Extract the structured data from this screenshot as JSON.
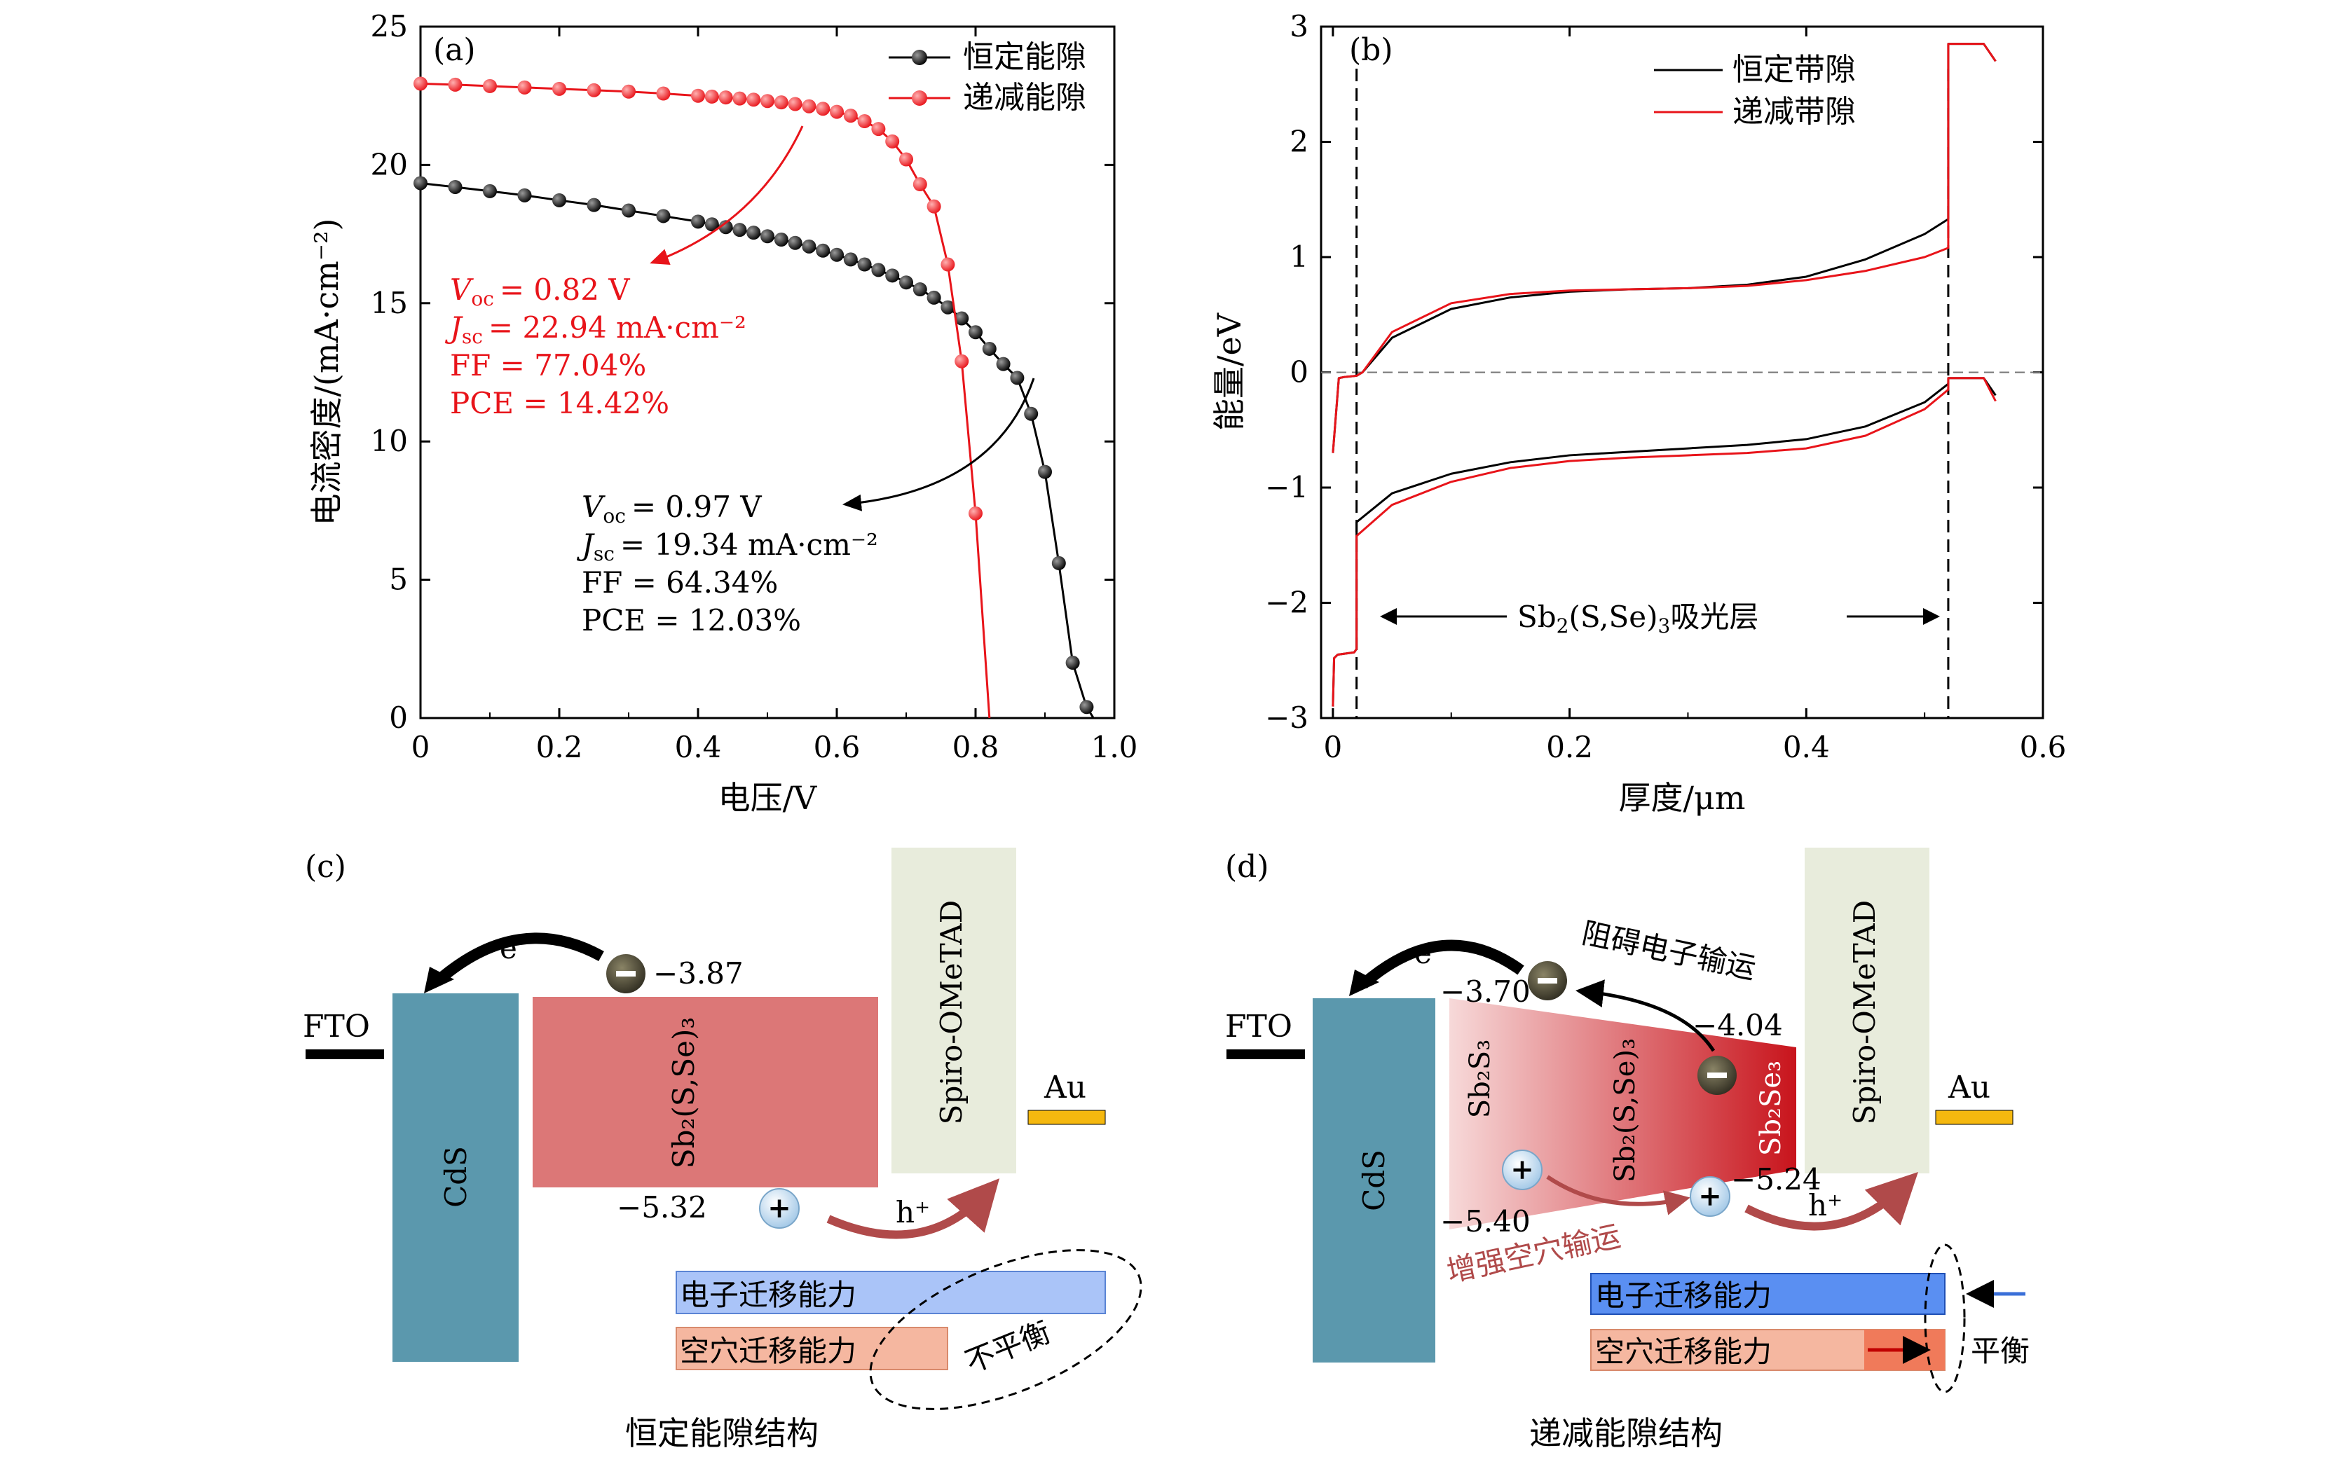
{
  "panel_a": {
    "tag": "(a)",
    "xlabel": "电压/V",
    "ylabel": "电流密度/(mA·cm⁻²)",
    "xticks": [
      "0",
      "0.2",
      "0.4",
      "0.6",
      "0.8",
      "1.0"
    ],
    "yticks": [
      "0",
      "5",
      "10",
      "15",
      "20",
      "25"
    ],
    "legend": [
      "恒定能隙",
      "递减能隙"
    ],
    "red_ann": {
      "voc": "= 0.82 V",
      "jsc": "= 22.94 mA·cm⁻²",
      "ff": "FF = 77.04%",
      "pce": "PCE = 14.42%"
    },
    "black_ann": {
      "voc": "= 0.97 V",
      "jsc": "= 19.34 mA·cm⁻²",
      "ff": "FF = 64.34%",
      "pce": "PCE = 12.03%"
    },
    "sym_voc": "V",
    "sub_oc": "oc",
    "sym_jsc": "J",
    "sub_sc": "sc"
  },
  "panel_b": {
    "tag": "(b)",
    "xlabel": "厚度/μm",
    "ylabel": "能量/eV",
    "xticks": [
      "0",
      "0.2",
      "0.4",
      "0.6"
    ],
    "yticks": [
      "−3",
      "−2",
      "−1",
      "0",
      "1",
      "2",
      "3"
    ],
    "legend": [
      "恒定带隙",
      "递减带隙"
    ],
    "absorber": {
      "pre": "Sb",
      "s1": "2",
      "mid": "(S,Se)",
      "s2": "3",
      "post": "吸光层"
    }
  },
  "panel_c": {
    "tag": "(c)",
    "fto": "FTO",
    "cds": "CdS",
    "spiro": "Spiro-OMeTAD",
    "au": "Au",
    "absorber": "Sb₂(S,Se)₃",
    "cb": "−3.87",
    "vb": "−5.32",
    "electron": "e⁻",
    "hole": "h⁺",
    "e_bar": "电子迁移能力",
    "h_bar": "空穴迁移能力",
    "imbalance": "不平衡",
    "caption": "恒定能隙结构"
  },
  "panel_d": {
    "tag": "(d)",
    "fto": "FTO",
    "cds": "CdS",
    "spiro": "Spiro-OMeTAD",
    "au": "Au",
    "left_label": "Sb₂S₃",
    "mid_label": "Sb₂(S,Se)₃",
    "right_label": "Sb₂Se₃",
    "cb_left": "−3.70",
    "cb_right": "−4.04",
    "vb_left": "−5.40",
    "vb_right": "−5.24",
    "electron": "e⁻",
    "hole": "h⁺",
    "block": "阻碍电子输运",
    "enhance": "增强空穴输运",
    "e_bar": "电子迁移能力",
    "h_bar": "空穴迁移能力",
    "balance": "平衡",
    "caption": "递减能隙结构"
  },
  "chart_data": [
    {
      "type": "line",
      "title": "(a)",
      "xlabel": "电压/V",
      "ylabel": "电流密度/(mA·cm⁻²)",
      "xlim": [
        0,
        1.0
      ],
      "ylim": [
        0,
        25
      ],
      "series": [
        {
          "name": "恒定能隙",
          "color": "#000000",
          "x": [
            0,
            0.05,
            0.1,
            0.15,
            0.2,
            0.25,
            0.3,
            0.35,
            0.4,
            0.42,
            0.44,
            0.46,
            0.48,
            0.5,
            0.52,
            0.54,
            0.56,
            0.58,
            0.6,
            0.62,
            0.64,
            0.66,
            0.68,
            0.7,
            0.72,
            0.74,
            0.76,
            0.78,
            0.8,
            0.82,
            0.84,
            0.86,
            0.88,
            0.9,
            0.92,
            0.94,
            0.96,
            0.97
          ],
          "y": [
            19.34,
            19.2,
            19.05,
            18.9,
            18.72,
            18.55,
            18.35,
            18.15,
            17.95,
            17.85,
            17.75,
            17.65,
            17.55,
            17.42,
            17.3,
            17.18,
            17.05,
            16.9,
            16.75,
            16.58,
            16.4,
            16.2,
            16.0,
            15.75,
            15.5,
            15.2,
            14.85,
            14.45,
            13.95,
            13.35,
            12.8,
            12.3,
            11.0,
            8.9,
            5.6,
            2.0,
            0.4,
            0
          ]
        },
        {
          "name": "递减能隙",
          "color": "#e8141a",
          "x": [
            0,
            0.05,
            0.1,
            0.15,
            0.2,
            0.25,
            0.3,
            0.35,
            0.4,
            0.42,
            0.44,
            0.46,
            0.48,
            0.5,
            0.52,
            0.54,
            0.56,
            0.58,
            0.6,
            0.62,
            0.64,
            0.66,
            0.68,
            0.7,
            0.72,
            0.74,
            0.76,
            0.78,
            0.8,
            0.82
          ],
          "y": [
            22.94,
            22.9,
            22.85,
            22.8,
            22.75,
            22.7,
            22.65,
            22.58,
            22.5,
            22.47,
            22.44,
            22.4,
            22.36,
            22.31,
            22.26,
            22.2,
            22.12,
            22.03,
            21.92,
            21.78,
            21.58,
            21.3,
            20.85,
            20.2,
            19.3,
            18.5,
            16.4,
            12.9,
            7.4,
            0
          ]
        }
      ]
    },
    {
      "type": "line",
      "title": "(b)",
      "xlabel": "厚度/μm",
      "ylabel": "能量/eV",
      "xlim": [
        -0.01,
        0.6
      ],
      "ylim": [
        -3,
        3
      ],
      "series": [
        {
          "name": "恒定带隙 CB",
          "color": "#000000",
          "x": [
            0.0,
            0.005,
            0.01,
            0.02,
            0.025,
            0.05,
            0.1,
            0.15,
            0.2,
            0.25,
            0.3,
            0.35,
            0.4,
            0.45,
            0.5,
            0.52,
            0.52,
            0.55,
            0.56
          ],
          "y": [
            -0.7,
            -0.05,
            -0.04,
            -0.03,
            0.0,
            0.3,
            0.55,
            0.65,
            0.7,
            0.72,
            0.73,
            0.76,
            0.83,
            0.98,
            1.2,
            1.33,
            2.85,
            2.85,
            2.7
          ]
        },
        {
          "name": "递减带隙 CB",
          "color": "#e8141a",
          "x": [
            0.0,
            0.005,
            0.01,
            0.02,
            0.025,
            0.05,
            0.1,
            0.15,
            0.2,
            0.25,
            0.3,
            0.35,
            0.4,
            0.45,
            0.5,
            0.52,
            0.52,
            0.55,
            0.56
          ],
          "y": [
            -0.7,
            -0.05,
            -0.04,
            -0.03,
            0.0,
            0.35,
            0.6,
            0.68,
            0.71,
            0.72,
            0.73,
            0.75,
            0.8,
            0.88,
            1.0,
            1.08,
            2.85,
            2.85,
            2.7
          ]
        },
        {
          "name": "恒定带隙 VB",
          "color": "#000000",
          "x": [
            0.0,
            0.001,
            0.004,
            0.018,
            0.02,
            0.02,
            0.05,
            0.1,
            0.15,
            0.2,
            0.25,
            0.3,
            0.35,
            0.4,
            0.45,
            0.5,
            0.52,
            0.52,
            0.55,
            0.56
          ],
          "y": [
            -2.9,
            -2.48,
            -2.45,
            -2.43,
            -2.4,
            -1.3,
            -1.05,
            -0.88,
            -0.78,
            -0.72,
            -0.69,
            -0.66,
            -0.63,
            -0.58,
            -0.47,
            -0.26,
            -0.1,
            -0.05,
            -0.05,
            -0.2
          ]
        },
        {
          "name": "递减带隙 VB",
          "color": "#e8141a",
          "x": [
            0.0,
            0.001,
            0.004,
            0.018,
            0.02,
            0.02,
            0.05,
            0.1,
            0.15,
            0.2,
            0.25,
            0.3,
            0.35,
            0.4,
            0.45,
            0.5,
            0.52,
            0.52,
            0.55,
            0.56
          ],
          "y": [
            -2.9,
            -2.48,
            -2.45,
            -2.43,
            -2.4,
            -1.42,
            -1.15,
            -0.95,
            -0.83,
            -0.77,
            -0.74,
            -0.72,
            -0.7,
            -0.66,
            -0.55,
            -0.32,
            -0.15,
            -0.05,
            -0.05,
            -0.25
          ]
        }
      ],
      "reference_lines": {
        "horizontal_dashed_y": 0,
        "vertical_dashed_x": [
          0.02,
          0.52
        ]
      }
    }
  ]
}
